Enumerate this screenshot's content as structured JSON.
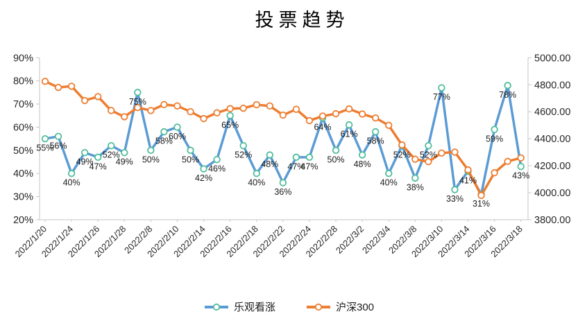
{
  "title": "投票趋势",
  "chart_data": {
    "type": "line",
    "title": "投票趋势",
    "grid": false,
    "legend_position": "bottom",
    "x_labels": [
      "2022/1/20",
      "2022/1/24",
      "2022/1/26",
      "2022/1/28",
      "2022/2/8",
      "2022/2/10",
      "2022/2/14",
      "2022/2/16",
      "2022/2/18",
      "2022/2/22",
      "2022/2/24",
      "2022/2/28",
      "2022/3/2",
      "2022/3/4",
      "2022/3/8",
      "2022/3/10",
      "2022/3/14",
      "2022/3/16",
      "2022/3/18"
    ],
    "x_label_every": 2,
    "left_axis": {
      "min": 20,
      "max": 90,
      "tick_labels": [
        "90%",
        "80%",
        "70%",
        "60%",
        "50%",
        "40%",
        "30%",
        "20%"
      ]
    },
    "right_axis": {
      "min": 3800,
      "max": 5000,
      "tick_labels": [
        "5000.00",
        "4800.00",
        "4600.00",
        "4400.00",
        "4200.00",
        "4000.00",
        "3800.00"
      ]
    },
    "series": [
      {
        "name": "乐观看涨",
        "yaxis": "left",
        "line_color": "#5B9BD5",
        "marker_stroke": "#4FBD9C",
        "marker_fill": "#ffffff",
        "data_labels": "percent",
        "values": [
          55,
          56,
          40,
          49,
          47,
          52,
          49,
          75,
          50,
          58,
          60,
          50,
          42,
          46,
          65,
          52,
          40,
          48,
          36,
          47,
          47,
          64,
          50,
          61,
          48,
          58,
          40,
          52,
          38,
          52,
          77,
          33,
          41,
          31,
          59,
          78,
          43
        ]
      },
      {
        "name": "沪深300",
        "yaxis": "right",
        "line_color": "#ED7D31",
        "marker_stroke": "#ED7D31",
        "marker_fill": "#ffffff",
        "data_labels": "none",
        "values": [
          4825,
          4780,
          4789,
          4683,
          4712,
          4609,
          4563,
          4631,
          4609,
          4653,
          4643,
          4600,
          4549,
          4592,
          4623,
          4626,
          4652,
          4643,
          4575,
          4618,
          4534,
          4568,
          4585,
          4621,
          4583,
          4554,
          4499,
          4354,
          4248,
          4230,
          4294,
          4301,
          4169,
          3980,
          4148,
          4232,
          4258
        ]
      }
    ]
  },
  "legend": [
    {
      "label": "乐观看涨",
      "line_color": "#5B9BD5",
      "marker_stroke": "#4FBD9C"
    },
    {
      "label": "沪深300",
      "line_color": "#ED7D31",
      "marker_stroke": "#ED7D31"
    }
  ],
  "style_colors": {
    "axis_line": "#C6C6C6",
    "tick_text": "#262626",
    "data_label_text": "#1a1a1a"
  }
}
